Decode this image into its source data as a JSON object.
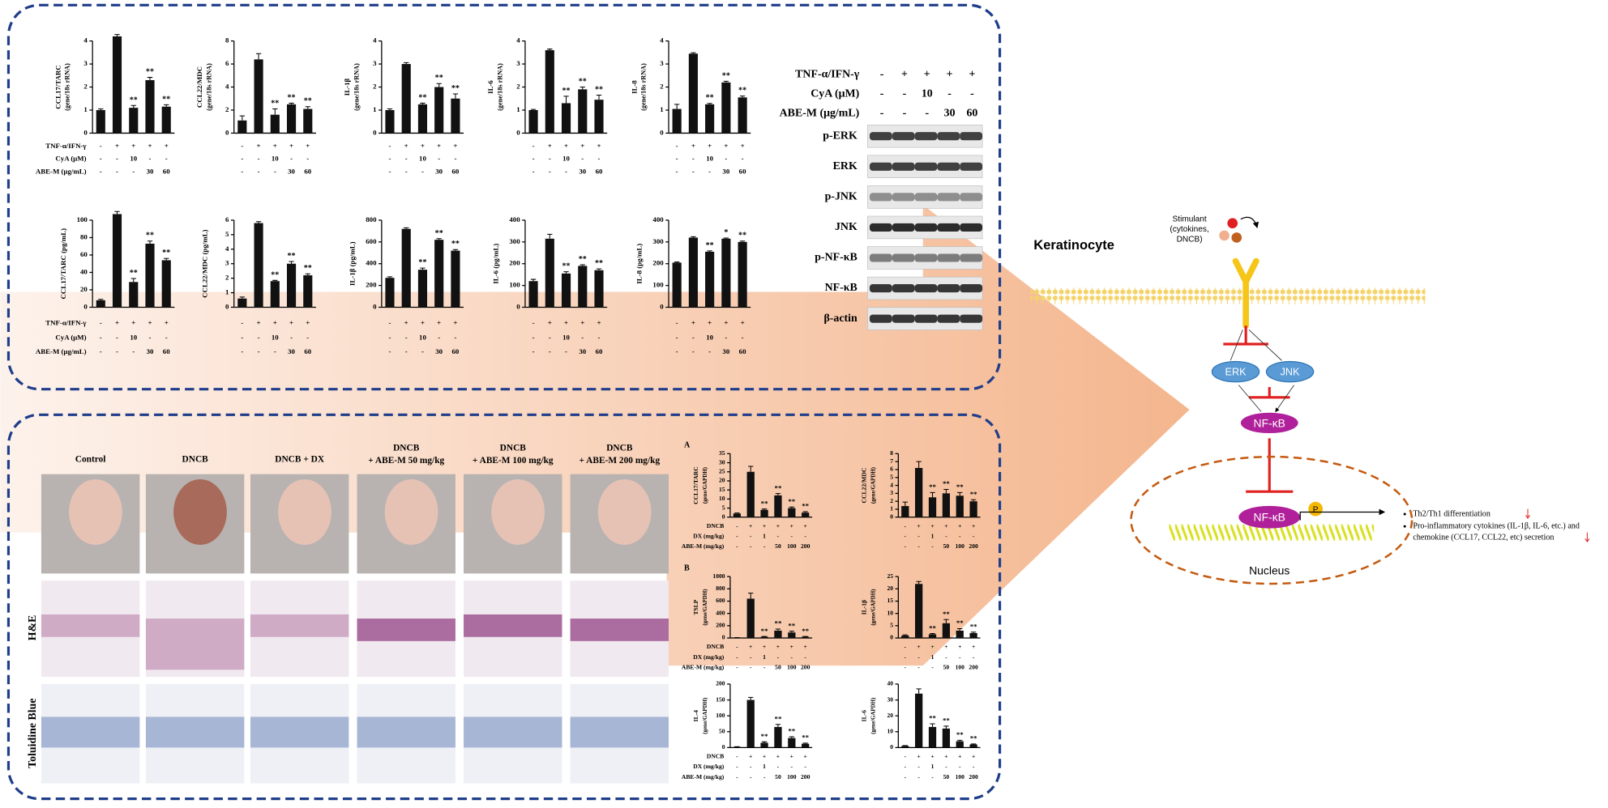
{
  "chart_data": [
    {
      "type": "bar",
      "ylabel": "CCL17/TARC",
      "ylabel_unit": "(gene/18s rRNA)",
      "color": "#111",
      "ylim": [
        0,
        4
      ],
      "yticks": [
        0,
        1,
        2,
        3,
        4
      ],
      "values": [
        1,
        4.2,
        1.1,
        2.3,
        1.15
      ],
      "errors": [
        0.05,
        0.08,
        0.1,
        0.12,
        0.08
      ],
      "annotations": [
        null,
        null,
        "**",
        "**",
        "**"
      ],
      "treatments": [
        {
          "name": "TNF-α/IFN-γ",
          "labels": [
            "-",
            "+",
            "+",
            "+",
            "+"
          ]
        },
        {
          "name": "CyA (μM)",
          "labels": [
            "-",
            "-",
            "10",
            "-",
            "-"
          ]
        },
        {
          "name": "ABE-M (μg/mL)",
          "labels": [
            "-",
            "-",
            "-",
            "30",
            "60"
          ]
        }
      ]
    },
    {
      "type": "bar",
      "ylabel": "CCL22/MDC",
      "ylabel_unit": "(gene/18s rRNA)",
      "color": "#111",
      "ylim": [
        0,
        8
      ],
      "yticks": [
        0,
        2,
        4,
        6,
        8
      ],
      "values": [
        1.1,
        6.4,
        1.6,
        2.5,
        2.1
      ],
      "errors": [
        0.4,
        0.5,
        0.5,
        0.1,
        0.2
      ],
      "annotations": [
        null,
        null,
        "**",
        "**",
        "**"
      ],
      "treatments": [
        {
          "labels": [
            "-",
            "+",
            "+",
            "+",
            "+"
          ]
        },
        {
          "labels": [
            "-",
            "-",
            "10",
            "-",
            "-"
          ]
        },
        {
          "labels": [
            "-",
            "-",
            "-",
            "30",
            "60"
          ]
        }
      ]
    },
    {
      "type": "bar",
      "ylabel": "IL-1β",
      "ylabel_unit": "(gene/18s rRNA)",
      "color": "#111",
      "ylim": [
        0,
        4
      ],
      "yticks": [
        0,
        1,
        2,
        3,
        4
      ],
      "values": [
        1,
        3,
        1.25,
        2,
        1.5
      ],
      "errors": [
        0.05,
        0.06,
        0.05,
        0.15,
        0.2
      ],
      "annotations": [
        null,
        null,
        "**",
        "**",
        "**"
      ],
      "treatments": [
        {
          "labels": [
            "-",
            "+",
            "+",
            "+",
            "+"
          ]
        },
        {
          "labels": [
            "-",
            "-",
            "10",
            "-",
            "-"
          ]
        },
        {
          "labels": [
            "-",
            "-",
            "-",
            "30",
            "60"
          ]
        }
      ]
    },
    {
      "type": "bar",
      "ylabel": "IL-6",
      "ylabel_unit": "(gene/18s rRNA)",
      "color": "#111",
      "ylim": [
        0,
        4
      ],
      "yticks": [
        0,
        1,
        2,
        3,
        4
      ],
      "values": [
        1,
        3.6,
        1.3,
        1.9,
        1.45
      ],
      "errors": [
        0.03,
        0.05,
        0.3,
        0.1,
        0.2
      ],
      "annotations": [
        null,
        null,
        "**",
        "**",
        "**"
      ],
      "treatments": [
        {
          "labels": [
            "-",
            "+",
            "+",
            "+",
            "+"
          ]
        },
        {
          "labels": [
            "-",
            "-",
            "10",
            "-",
            "-"
          ]
        },
        {
          "labels": [
            "-",
            "-",
            "-",
            "30",
            "60"
          ]
        }
      ]
    },
    {
      "type": "bar",
      "ylabel": "IL-8",
      "ylabel_unit": "(gene/18s rRNA)",
      "color": "#111",
      "ylim": [
        0,
        4
      ],
      "yticks": [
        0,
        1,
        2,
        3,
        4
      ],
      "values": [
        1.05,
        3.45,
        1.25,
        2.2,
        1.55
      ],
      "errors": [
        0.2,
        0.04,
        0.04,
        0.05,
        0.06
      ],
      "annotations": [
        null,
        null,
        "**",
        "**",
        "**"
      ],
      "treatments": [
        {
          "labels": [
            "-",
            "+",
            "+",
            "+",
            "+"
          ]
        },
        {
          "labels": [
            "-",
            "-",
            "10",
            "-",
            "-"
          ]
        },
        {
          "labels": [
            "-",
            "-",
            "-",
            "30",
            "60"
          ]
        }
      ]
    },
    {
      "type": "bar",
      "ylabel": "CCL17/TARC (pg/mL)",
      "color": "#111",
      "ylim": [
        0,
        100
      ],
      "yticks": [
        0,
        20,
        40,
        60,
        80,
        100
      ],
      "values": [
        8,
        107,
        29,
        73,
        54
      ],
      "errors": [
        1,
        3,
        4,
        3,
        2
      ],
      "annotations": [
        null,
        null,
        "**",
        "**",
        "**"
      ],
      "treatments": [
        {
          "name": "TNF-α/IFN-γ",
          "labels": [
            "-",
            "+",
            "+",
            "+",
            "+"
          ]
        },
        {
          "name": "CyA (μM)",
          "labels": [
            "-",
            "-",
            "10",
            "-",
            "-"
          ]
        },
        {
          "name": "ABE-M (μg/mL)",
          "labels": [
            "-",
            "-",
            "-",
            "30",
            "60"
          ]
        }
      ]
    },
    {
      "type": "bar",
      "ylabel": "CCL22/MDC (pg/mL)",
      "color": "#111",
      "ylim": [
        0,
        6
      ],
      "yticks": [
        0,
        1,
        2,
        3,
        4,
        5,
        6
      ],
      "values": [
        0.6,
        5.8,
        1.8,
        3,
        2.2
      ],
      "errors": [
        0.1,
        0.1,
        0.05,
        0.15,
        0.1
      ],
      "annotations": [
        null,
        null,
        "**",
        "**",
        "**"
      ],
      "treatments": [
        {
          "labels": [
            "-",
            "+",
            "+",
            "+",
            "+"
          ]
        },
        {
          "labels": [
            "-",
            "-",
            "10",
            "-",
            "-"
          ]
        },
        {
          "labels": [
            "-",
            "-",
            "-",
            "30",
            "60"
          ]
        }
      ]
    },
    {
      "type": "bar",
      "ylabel": "IL-1β (pg/mL)",
      "color": "#111",
      "ylim": [
        0,
        800
      ],
      "yticks": [
        0,
        200,
        400,
        600,
        800
      ],
      "values": [
        270,
        720,
        345,
        620,
        520
      ],
      "errors": [
        10,
        10,
        15,
        10,
        10
      ],
      "annotations": [
        null,
        null,
        "**",
        "**",
        "**"
      ],
      "treatments": [
        {
          "labels": [
            "-",
            "+",
            "+",
            "+",
            "+"
          ]
        },
        {
          "labels": [
            "-",
            "-",
            "10",
            "-",
            "-"
          ]
        },
        {
          "labels": [
            "-",
            "-",
            "-",
            "30",
            "60"
          ]
        }
      ]
    },
    {
      "type": "bar",
      "ylabel": "IL-6 (pg/mL)",
      "color": "#111",
      "ylim": [
        0,
        400
      ],
      "yticks": [
        0,
        100,
        200,
        300,
        400
      ],
      "values": [
        120,
        315,
        155,
        190,
        170
      ],
      "errors": [
        8,
        20,
        8,
        5,
        6
      ],
      "annotations": [
        null,
        null,
        "**",
        "**",
        "**"
      ],
      "treatments": [
        {
          "labels": [
            "-",
            "+",
            "+",
            "+",
            "+"
          ]
        },
        {
          "labels": [
            "-",
            "-",
            "10",
            "-",
            "-"
          ]
        },
        {
          "labels": [
            "-",
            "-",
            "-",
            "30",
            "60"
          ]
        }
      ]
    },
    {
      "type": "bar",
      "ylabel": "IL-8 (pg/mL)",
      "color": "#111",
      "ylim": [
        0,
        400
      ],
      "yticks": [
        0,
        100,
        200,
        300,
        400
      ],
      "values": [
        205,
        320,
        255,
        315,
        300
      ],
      "errors": [
        3,
        4,
        4,
        3,
        4
      ],
      "annotations": [
        null,
        null,
        "**",
        "*",
        "**"
      ],
      "treatments": [
        {
          "labels": [
            "-",
            "+",
            "+",
            "+",
            "+"
          ]
        },
        {
          "labels": [
            "-",
            "-",
            "10",
            "-",
            "-"
          ]
        },
        {
          "labels": [
            "-",
            "-",
            "-",
            "30",
            "60"
          ]
        }
      ]
    },
    {
      "type": "bar",
      "panel": "A",
      "ylabel": "CCL17/TARC",
      "ylabel_unit": "(gene/GAPDH)",
      "color": "#111",
      "ylim": [
        0,
        35
      ],
      "yticks": [
        0,
        5,
        10,
        15,
        20,
        25,
        30,
        35
      ],
      "values": [
        2,
        25,
        4,
        12,
        5,
        2.5
      ],
      "errors": [
        0.3,
        3,
        0.5,
        1,
        0.6,
        0.5
      ],
      "annotations": [
        null,
        null,
        "**",
        "**",
        "**",
        "**"
      ],
      "treatments": [
        {
          "name": "DNCB",
          "labels": [
            "-",
            "+",
            "+",
            "+",
            "+",
            "+"
          ]
        },
        {
          "name": "DX (mg/kg)",
          "labels": [
            "-",
            "-",
            "1",
            "-",
            "-",
            "-"
          ]
        },
        {
          "name": "ABE-M (mg/kg)",
          "labels": [
            "-",
            "-",
            "-",
            "50",
            "100",
            "200"
          ]
        }
      ]
    },
    {
      "type": "bar",
      "ylabel": "CCL22/MDC",
      "ylabel_unit": "(gene/GAPDH)",
      "color": "#111",
      "ylim": [
        0,
        8
      ],
      "yticks": [
        0,
        1,
        2,
        3,
        4,
        5,
        6,
        7,
        8
      ],
      "values": [
        1.4,
        6.2,
        2.5,
        3,
        2.7,
        2
      ],
      "errors": [
        0.5,
        0.8,
        0.6,
        0.5,
        0.4,
        0.2
      ],
      "annotations": [
        null,
        null,
        "**",
        "**",
        "**",
        "**"
      ],
      "treatments": [
        {
          "labels": [
            "-",
            "+",
            "+",
            "+",
            "+",
            "+"
          ]
        },
        {
          "labels": [
            "-",
            "-",
            "1",
            "-",
            "-",
            "-"
          ]
        },
        {
          "labels": [
            "-",
            "-",
            "-",
            "50",
            "100",
            "200"
          ]
        }
      ]
    },
    {
      "type": "bar",
      "panel": "B",
      "ylabel": "TSLP",
      "ylabel_unit": "(gene/GAPDH)",
      "color": "#111",
      "ylim": [
        0,
        1000
      ],
      "yticks": [
        0,
        200,
        400,
        600,
        800,
        1000
      ],
      "values": [
        5,
        640,
        20,
        120,
        90,
        20
      ],
      "errors": [
        2,
        90,
        5,
        25,
        20,
        5
      ],
      "annotations": [
        null,
        null,
        "**",
        "**",
        "**",
        "**"
      ],
      "treatments": [
        {
          "name": "DNCB",
          "labels": [
            "-",
            "+",
            "+",
            "+",
            "+",
            "+"
          ]
        },
        {
          "name": "DX (mg/kg)",
          "labels": [
            "-",
            "-",
            "1",
            "-",
            "-",
            "-"
          ]
        },
        {
          "name": "ABE-M (mg/kg)",
          "labels": [
            "-",
            "-",
            "-",
            "50",
            "100",
            "200"
          ]
        }
      ]
    },
    {
      "type": "bar",
      "ylabel": "IL-1β",
      "ylabel_unit": "(gene/GAPDH)",
      "color": "#111",
      "ylim": [
        0,
        25
      ],
      "yticks": [
        0,
        5,
        10,
        15,
        20,
        25
      ],
      "values": [
        1,
        22,
        1.5,
        6,
        3,
        2
      ],
      "errors": [
        0.3,
        1,
        0.3,
        1.5,
        0.8,
        0.4
      ],
      "annotations": [
        null,
        null,
        "**",
        "**",
        "**",
        "**"
      ],
      "treatments": [
        {
          "labels": [
            "-",
            "+",
            "+",
            "+",
            "+",
            "+"
          ]
        },
        {
          "labels": [
            "-",
            "-",
            "1",
            "-",
            "-",
            "-"
          ]
        },
        {
          "labels": [
            "-",
            "-",
            "-",
            "50",
            "100",
            "200"
          ]
        }
      ]
    },
    {
      "type": "bar",
      "ylabel": "IL-4",
      "ylabel_unit": "(gene/GAPDH)",
      "color": "#111",
      "ylim": [
        0,
        200
      ],
      "yticks": [
        0,
        50,
        100,
        150,
        200
      ],
      "values": [
        2,
        150,
        15,
        65,
        30,
        12
      ],
      "errors": [
        1,
        8,
        3,
        8,
        4,
        2
      ],
      "annotations": [
        null,
        null,
        "**",
        "**",
        "**",
        "**"
      ],
      "treatments": [
        {
          "name": "DNCB",
          "labels": [
            "-",
            "+",
            "+",
            "+",
            "+",
            "+"
          ]
        },
        {
          "name": "DX (mg/kg)",
          "labels": [
            "-",
            "-",
            "1",
            "-",
            "-",
            "-"
          ]
        },
        {
          "name": "ABE-M (mg/kg)",
          "labels": [
            "-",
            "-",
            "-",
            "50",
            "100",
            "200"
          ]
        }
      ]
    },
    {
      "type": "bar",
      "ylabel": "IL-6",
      "ylabel_unit": "(gene/GAPDH)",
      "color": "#111",
      "ylim": [
        0,
        40
      ],
      "yticks": [
        0,
        10,
        20,
        30,
        40
      ],
      "values": [
        1,
        34,
        13,
        12,
        4,
        2
      ],
      "errors": [
        0.3,
        3,
        2,
        1.5,
        0.6,
        0.3
      ],
      "annotations": [
        null,
        null,
        "**",
        "**",
        "**",
        "**"
      ],
      "treatments": [
        {
          "labels": [
            "-",
            "+",
            "+",
            "+",
            "+",
            "+"
          ]
        },
        {
          "labels": [
            "-",
            "-",
            "1",
            "-",
            "-",
            "-"
          ]
        },
        {
          "labels": [
            "-",
            "-",
            "-",
            "50",
            "100",
            "200"
          ]
        }
      ]
    }
  ],
  "western_blot": {
    "treatments": [
      {
        "name": "TNF-α/IFN-γ",
        "labels": [
          "-",
          "+",
          "+",
          "+",
          "+"
        ]
      },
      {
        "name": "CyA (μM)",
        "labels": [
          "-",
          "-",
          "10",
          "-",
          "-"
        ]
      },
      {
        "name": "ABE-M (μg/mL)",
        "labels": [
          "-",
          "-",
          "-",
          "30",
          "60"
        ]
      }
    ],
    "proteins": [
      "p-ERK",
      "ERK",
      "p-JNK",
      "JNK",
      "p-NF-κB",
      "NF-κB",
      "β-actin"
    ]
  },
  "histology": {
    "columns": [
      [
        "Control"
      ],
      [
        "DNCB"
      ],
      [
        "DNCB + DX"
      ],
      [
        "DNCB",
        "+ ABE-M 50 mg/kg"
      ],
      [
        "DNCB",
        "+ ABE-M 100 mg/kg"
      ],
      [
        "DNCB",
        "+ ABE-M 200 mg/kg"
      ]
    ],
    "rows": [
      "H&E",
      "Toluidine Blue"
    ]
  },
  "pathway": {
    "cell": "Keratinocyte",
    "stimulant": [
      "Stimulant",
      "(cytokines,",
      "DNCB)"
    ],
    "kinases": [
      "ERK",
      "JNK"
    ],
    "transcription_factor": "NF-κB",
    "nuclear_factor": "NF-κB",
    "phospho": "P",
    "compartment": "Nucleus",
    "outcomes": [
      [
        "Th2/Th1 differentiation"
      ],
      [
        "Pro-inflammatory cytokines (IL-1β, IL-6, etc.) and",
        "chemokine (CCL17, CCL22, etc) secretion"
      ]
    ]
  }
}
